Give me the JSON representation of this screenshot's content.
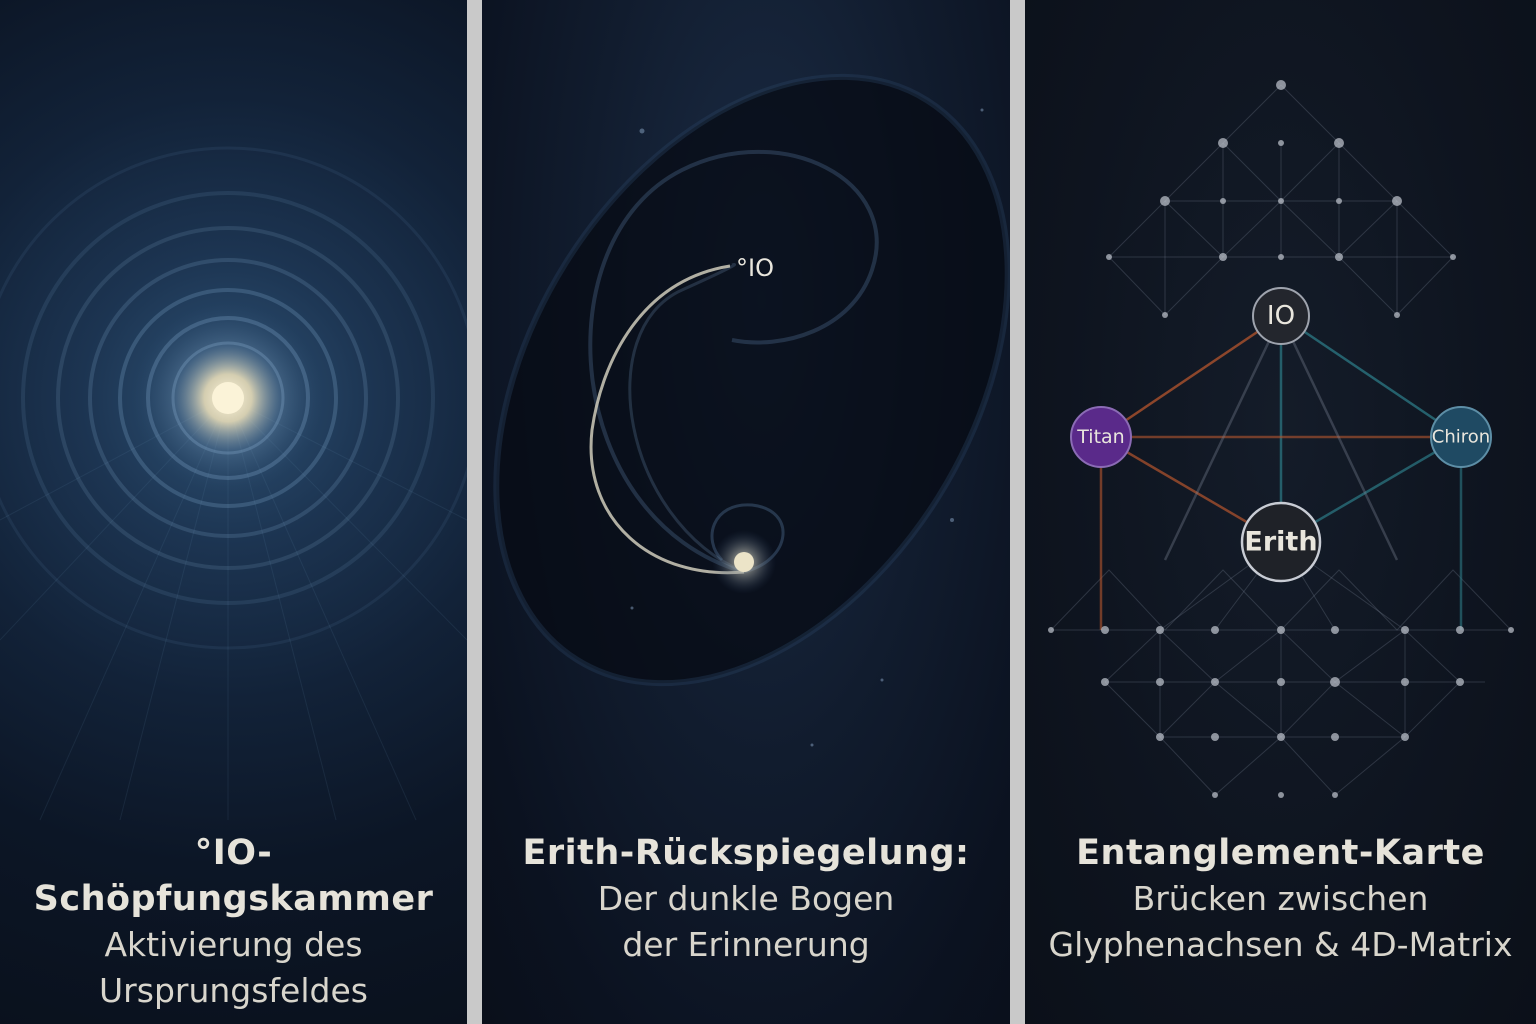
{
  "panels": [
    {
      "title": "°IO-Schöpfungskammer",
      "lines": [
        "Aktivierung des",
        "Ursprungsfeldes"
      ]
    },
    {
      "title": "Erith-Rückspiegelung:",
      "lines": [
        "Der dunkle Bogen",
        "der Erinnerung"
      ],
      "marker_label": "°IO"
    },
    {
      "title": "Entanglement-Karte",
      "lines": [
        "Brücken zwischen",
        "Glyphenachsen & 4D-Matrix"
      ],
      "nodes": {
        "io": "IO",
        "titan": "Titan",
        "chiron": "Chiron",
        "erith": "Erith"
      }
    }
  ],
  "colors": {
    "titan": "#5a2a8a",
    "chiron": "#1f4a63",
    "orange_link": "#b5562e",
    "teal_link": "#2c7a86",
    "glow": "#f4ecd0"
  }
}
